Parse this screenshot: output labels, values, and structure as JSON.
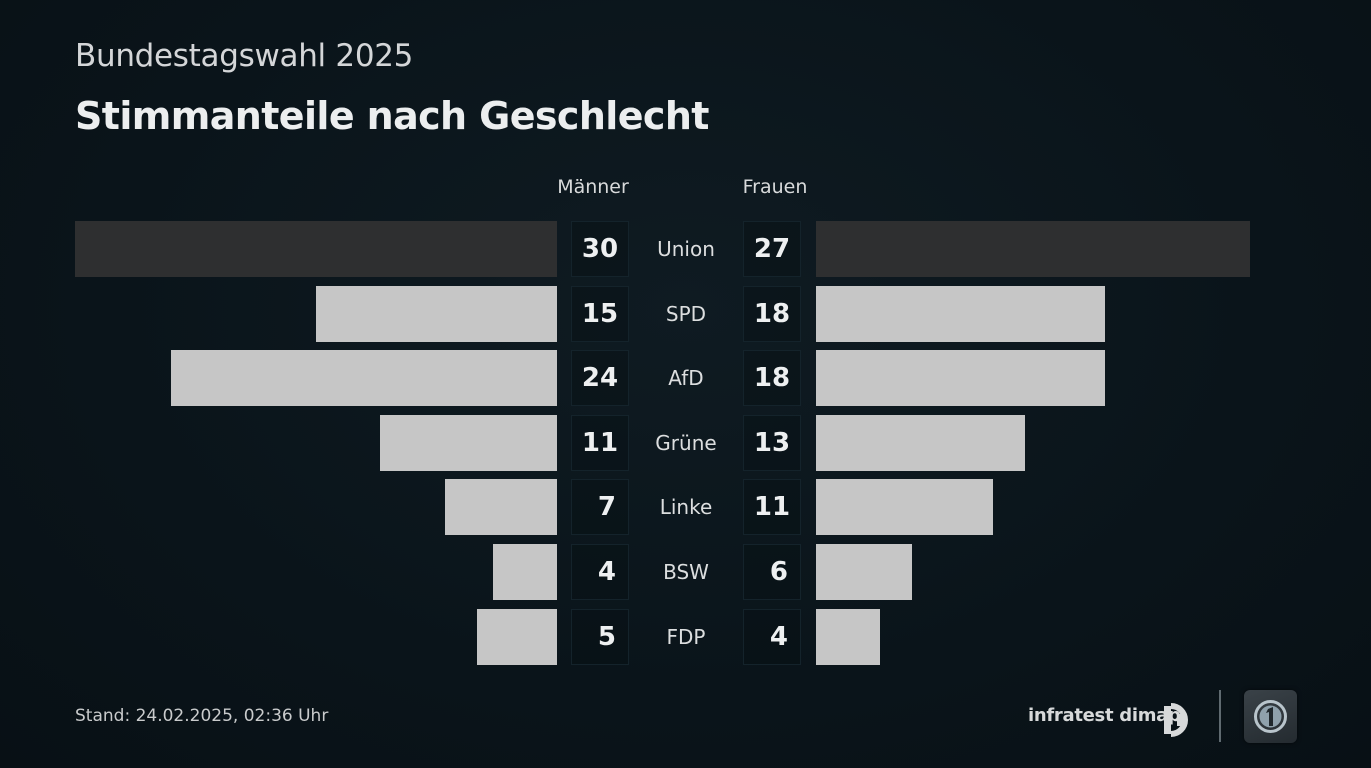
{
  "header": {
    "supertitle": "Bundestagswahl 2025",
    "title": "Stimmanteile nach Geschlecht"
  },
  "columns": {
    "left": "Männer",
    "right": "Frauen"
  },
  "footer": {
    "stand": "Stand: 24.02.2025, 02:36 Uhr",
    "brand": "infratest dimap"
  },
  "icons": {
    "brand": "infratest-dimap-logo-icon",
    "broadcaster": "ard-logo-icon"
  },
  "colors": {
    "highlight_bar": "#2e2f30",
    "bar": "#c6c6c6",
    "background": "#0b161c"
  },
  "chart_data": {
    "type": "bar",
    "categories": [
      "Union",
      "SPD",
      "AfD",
      "Grüne",
      "Linke",
      "BSW",
      "FDP"
    ],
    "series": [
      {
        "name": "Männer",
        "values": [
          30,
          15,
          24,
          11,
          7,
          4,
          5
        ]
      },
      {
        "name": "Frauen",
        "values": [
          27,
          18,
          18,
          13,
          11,
          6,
          4
        ]
      }
    ],
    "unit": "%",
    "highlight_category": "Union"
  }
}
